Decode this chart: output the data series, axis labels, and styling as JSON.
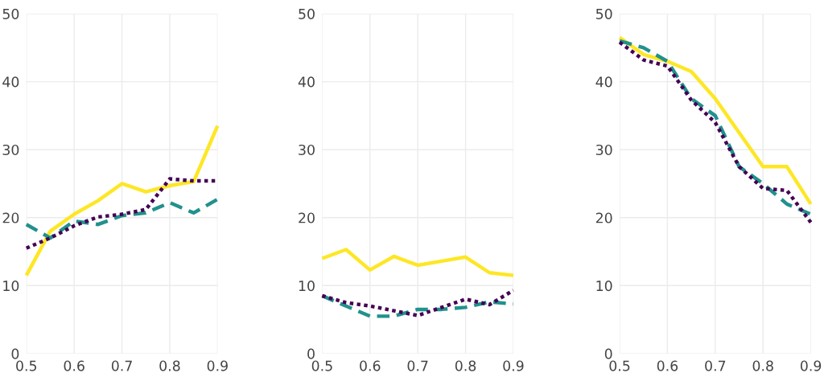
{
  "chart_data": [
    {
      "type": "line",
      "x": [
        0.5,
        0.55,
        0.6,
        0.65,
        0.7,
        0.75,
        0.8,
        0.85,
        0.9
      ],
      "xlim": [
        0.5,
        0.9
      ],
      "xticks": [
        0.5,
        0.6,
        0.7,
        0.8,
        0.9
      ],
      "ylim": [
        0,
        50
      ],
      "yticks": [
        0,
        10,
        20,
        30,
        40,
        50
      ],
      "grid": true,
      "series": [
        {
          "color": "#fde725",
          "line_style": "solid",
          "values": [
            11.5,
            18,
            20.5,
            22.5,
            25,
            23.8,
            24.7,
            25.3,
            33.5
          ]
        },
        {
          "color": "#21918c",
          "line_style": "dashed",
          "values": [
            19,
            17,
            19.5,
            19,
            20.3,
            20.7,
            22.2,
            20.7,
            22.7
          ]
        },
        {
          "color": "#440154",
          "line_style": "dotted",
          "values": [
            15.5,
            17,
            18.8,
            20.1,
            20.5,
            21.2,
            25.7,
            25.4,
            25.4
          ]
        }
      ]
    },
    {
      "type": "line",
      "x": [
        0.5,
        0.55,
        0.6,
        0.65,
        0.7,
        0.75,
        0.8,
        0.85,
        0.9
      ],
      "xlim": [
        0.5,
        0.9
      ],
      "xticks": [
        0.5,
        0.6,
        0.7,
        0.8,
        0.9
      ],
      "ylim": [
        0,
        50
      ],
      "yticks": [
        0,
        10,
        20,
        30,
        40,
        50
      ],
      "grid": true,
      "series": [
        {
          "color": "#fde725",
          "line_style": "solid",
          "values": [
            14,
            15.3,
            12.3,
            14.3,
            13,
            13.6,
            14.2,
            11.9,
            11.5
          ]
        },
        {
          "color": "#21918c",
          "line_style": "dashed",
          "values": [
            8.5,
            7,
            5.5,
            5.5,
            6.5,
            6.5,
            6.8,
            7.6,
            7.3
          ]
        },
        {
          "color": "#440154",
          "line_style": "dotted",
          "values": [
            8.5,
            7.5,
            7,
            6.3,
            5.6,
            6.8,
            8,
            7.2,
            9.3
          ]
        }
      ]
    },
    {
      "type": "line",
      "x": [
        0.5,
        0.55,
        0.6,
        0.65,
        0.7,
        0.75,
        0.8,
        0.85,
        0.9
      ],
      "xlim": [
        0.5,
        0.9
      ],
      "xticks": [
        0.5,
        0.6,
        0.7,
        0.8,
        0.9
      ],
      "ylim": [
        0,
        50
      ],
      "yticks": [
        0,
        10,
        20,
        30,
        40,
        50
      ],
      "grid": true,
      "series": [
        {
          "color": "#fde725",
          "line_style": "solid",
          "values": [
            46.5,
            44,
            43,
            41.5,
            37.5,
            32.5,
            27.5,
            27.5,
            22
          ]
        },
        {
          "color": "#21918c",
          "line_style": "dashed",
          "values": [
            46,
            45,
            43,
            37.5,
            35,
            27.5,
            25,
            22,
            20.5
          ]
        },
        {
          "color": "#440154",
          "line_style": "dotted",
          "values": [
            45.8,
            43.2,
            42.3,
            37.3,
            34,
            27.5,
            24.3,
            24,
            19.3
          ]
        }
      ]
    }
  ]
}
